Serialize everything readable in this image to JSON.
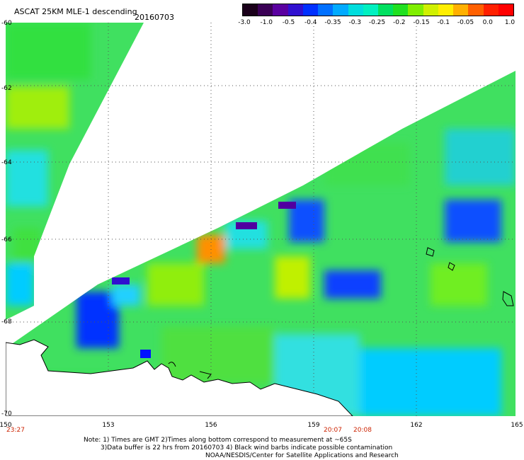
{
  "header": {
    "title": "ASCAT 25KM MLE-1 descending",
    "date": "20160703"
  },
  "colorbar": {
    "labels": [
      "-3.0",
      "-1.0",
      "-0.5",
      "-0.4",
      "-0.35",
      "-0.3",
      "-0.25",
      "-0.2",
      "-0.15",
      "-0.1",
      "-0.05",
      "0.0",
      "1.0"
    ],
    "colors": [
      "#1a001a",
      "#3a0055",
      "#5a00a0",
      "#3010d0",
      "#0030ff",
      "#0070ff",
      "#00aaff",
      "#00dddd",
      "#00f0c0",
      "#00e060",
      "#20e020",
      "#80ee00",
      "#d0f000",
      "#ffee00",
      "#ffb000",
      "#ff6000",
      "#ff2000",
      "#ff0000"
    ]
  },
  "map": {
    "lat_labels": [
      "-60",
      "-62",
      "-64",
      "-66",
      "-68",
      "-70"
    ],
    "lon_labels": [
      "150",
      "153",
      "156",
      "159",
      "162",
      "165"
    ],
    "time_labels": [
      "23:27",
      "20:07",
      "20:08"
    ],
    "land_color": "#ffffff",
    "coast_color": "#000000"
  },
  "footer": {
    "note_line1": "Note: 1) Times are GMT 2)Times along bottom correspond to measurement at ~65S",
    "note_line2": "3)Data buffer is 22 hrs from 20160703 4) Black wind barbs indicate possible contamination",
    "note_line3": "NOAA/NESDIS/Center for Satellite Applications and Research"
  }
}
